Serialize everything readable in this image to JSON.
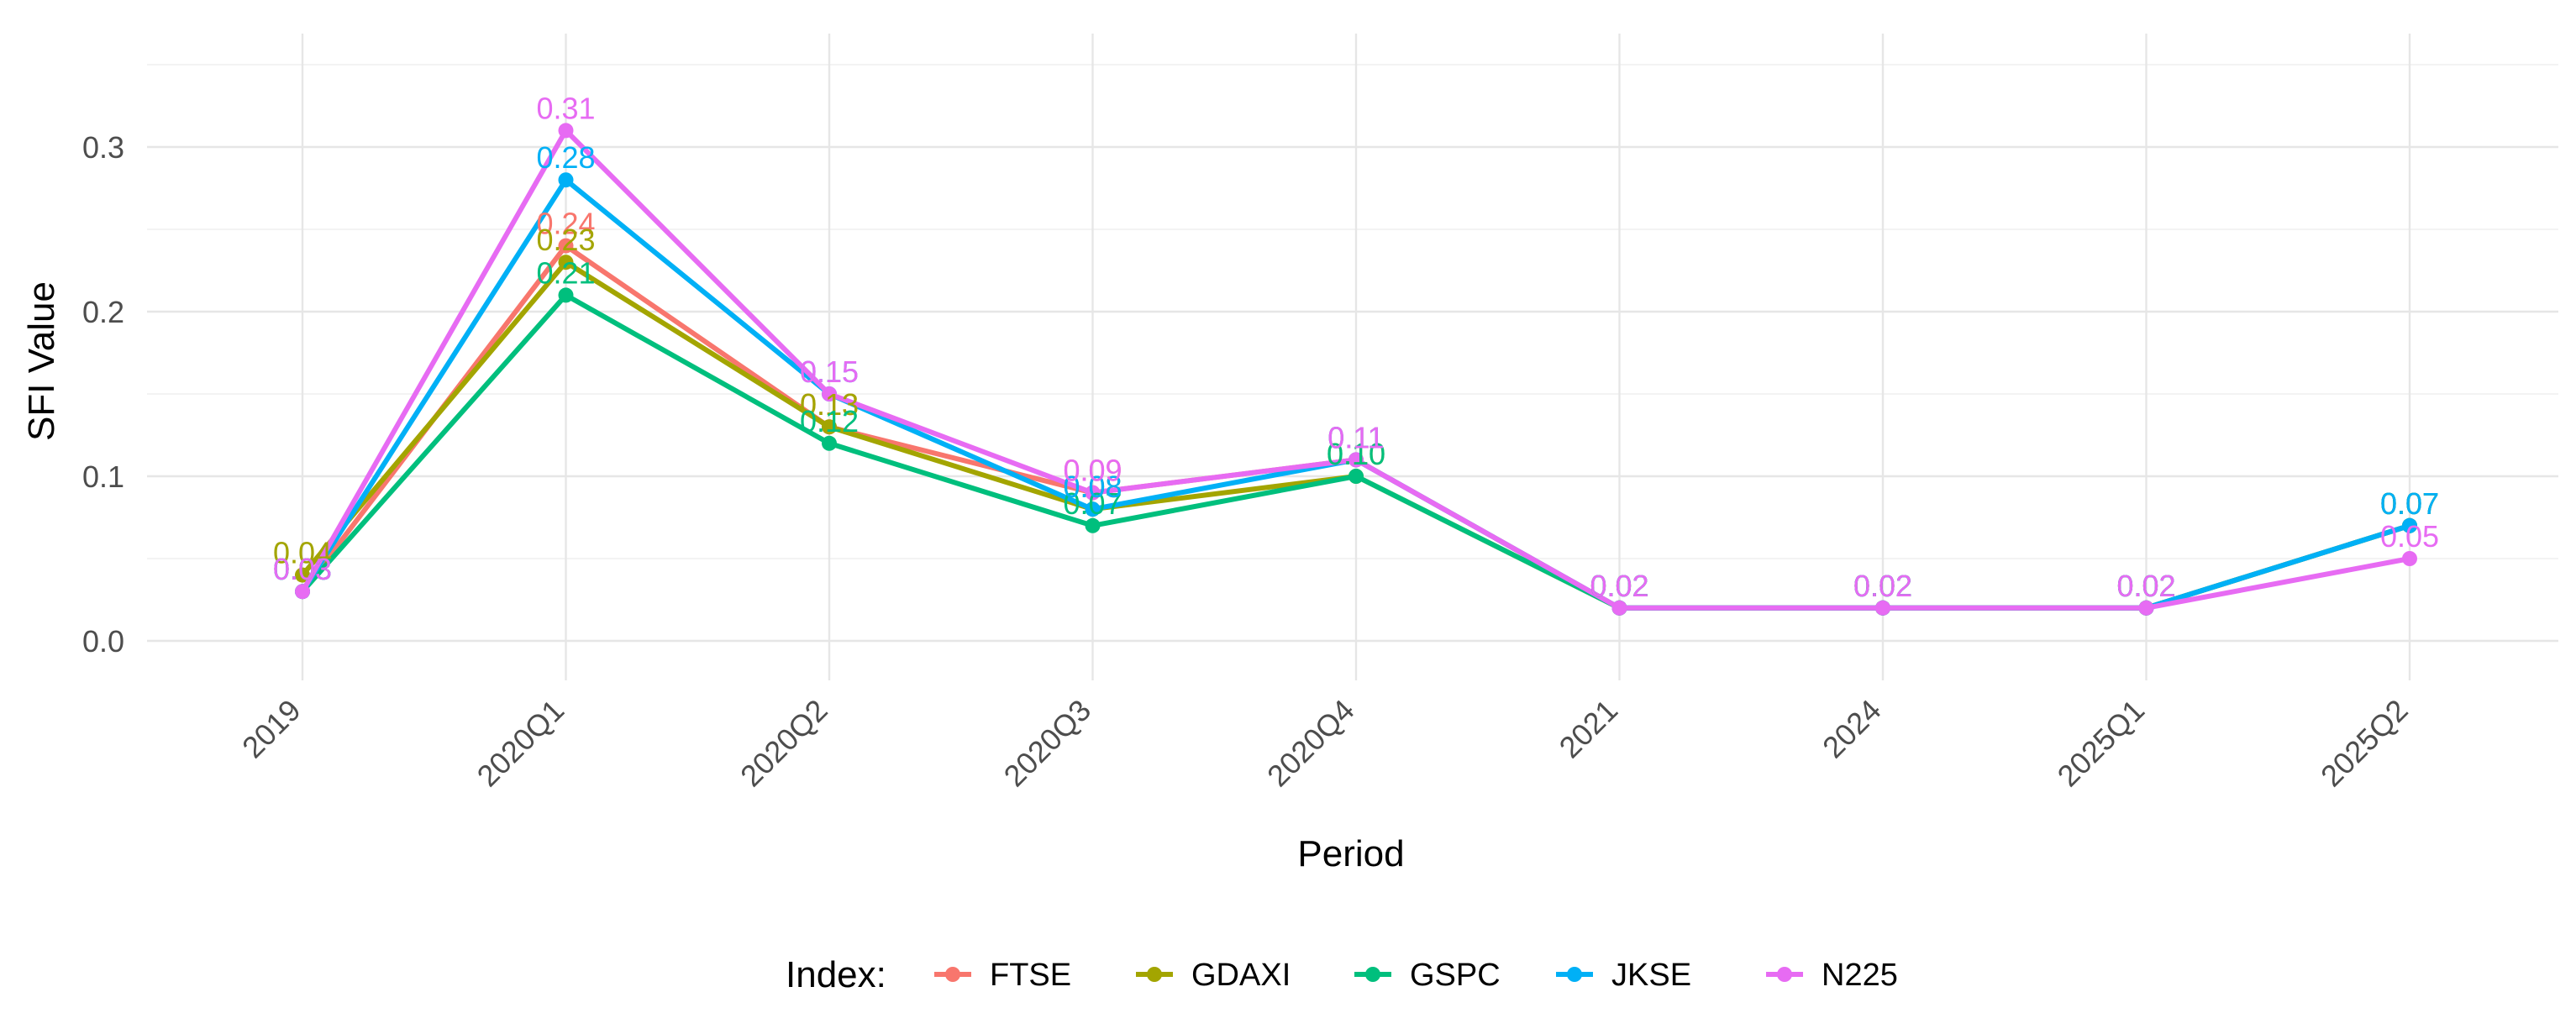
{
  "chart_data": {
    "type": "line",
    "title": "",
    "xlabel": "Period",
    "ylabel": "SFI Value",
    "categories": [
      "2019",
      "2020Q1",
      "2020Q2",
      "2020Q3",
      "2020Q4",
      "2021",
      "2024",
      "2025Q1",
      "2025Q2"
    ],
    "ylim": [
      -0.028,
      0.35
    ],
    "yticks": [
      0.0,
      0.1,
      0.2,
      0.3
    ],
    "ytick_labels": [
      "0.0",
      "0.1",
      "0.2",
      "0.3"
    ],
    "grid": true,
    "legend": {
      "title": "Index:",
      "position": "bottom"
    },
    "series": [
      {
        "name": "FTSE",
        "color": "#F8766D",
        "values": [
          0.03,
          0.24,
          0.13,
          0.09,
          0.11,
          0.02,
          0.02,
          0.02,
          0.07
        ],
        "labels": [
          "0.03",
          "0.24",
          "0.13",
          "0.09",
          "0.11",
          "0.02",
          "0.02",
          "0.02",
          "0.07"
        ]
      },
      {
        "name": "GDAXI",
        "color": "#A3A500",
        "values": [
          0.04,
          0.23,
          0.13,
          0.08,
          0.1,
          0.02,
          0.02,
          0.02,
          0.07
        ],
        "labels": [
          "0.04",
          "0.23",
          "0.13",
          "0.08",
          "0.10",
          "0.02",
          "0.02",
          "0.02",
          "0.07"
        ]
      },
      {
        "name": "GSPC",
        "color": "#00BF7D",
        "values": [
          0.03,
          0.21,
          0.12,
          0.07,
          0.1,
          0.02,
          0.02,
          0.02,
          0.07
        ],
        "labels": [
          "0.03",
          "0.21",
          "0.12",
          "0.07",
          "0.10",
          "0.02",
          "0.02",
          "0.02",
          "0.07"
        ]
      },
      {
        "name": "JKSE",
        "color": "#00B0F6",
        "values": [
          0.03,
          0.28,
          0.15,
          0.08,
          0.11,
          0.02,
          0.02,
          0.02,
          0.07
        ],
        "labels": [
          "0.03",
          "0.28",
          "0.15",
          "0.08",
          "0.11",
          "0.02",
          "0.02",
          "0.02",
          "0.07"
        ]
      },
      {
        "name": "N225",
        "color": "#E76BF3",
        "values": [
          0.03,
          0.31,
          0.15,
          0.09,
          0.11,
          0.02,
          0.02,
          0.02,
          0.05
        ],
        "labels": [
          "0.03",
          "0.31",
          "0.15",
          "0.09",
          "0.11",
          "0.02",
          "0.02",
          "0.02",
          "0.05"
        ]
      }
    ]
  }
}
